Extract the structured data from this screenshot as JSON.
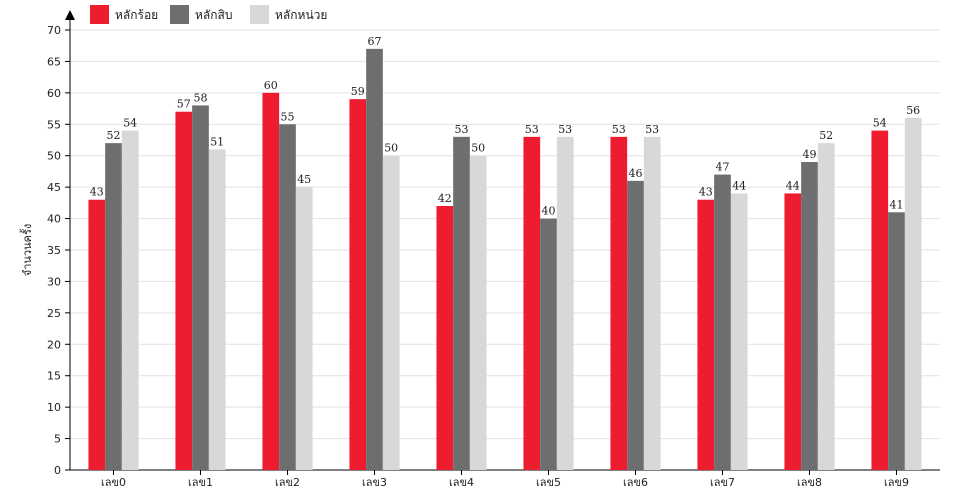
{
  "chart_data": {
    "type": "bar",
    "title": "",
    "xlabel": "",
    "ylabel": "จำนวนครั้ง",
    "ylim": [
      0,
      70
    ],
    "yticks": [
      0,
      5,
      10,
      15,
      20,
      25,
      30,
      35,
      40,
      45,
      50,
      55,
      60,
      65,
      70
    ],
    "grid": true,
    "legend_position": "top-left",
    "categories": [
      "เลข0",
      "เลข1",
      "เลข2",
      "เลข3",
      "เลข4",
      "เลข5",
      "เลข6",
      "เลข7",
      "เลข8",
      "เลข9"
    ],
    "series": [
      {
        "name": "หลักร้อย",
        "color": "#ed1c2e",
        "values": [
          43,
          57,
          60,
          59,
          42,
          53,
          53,
          43,
          44,
          54
        ]
      },
      {
        "name": "หลักสิบ",
        "color": "#6d6e70",
        "values": [
          52,
          58,
          55,
          67,
          53,
          40,
          46,
          47,
          49,
          41
        ]
      },
      {
        "name": "หลักหน่วย",
        "color": "#d8d8d8",
        "values": [
          54,
          51,
          45,
          50,
          50,
          53,
          53,
          44,
          52,
          56
        ]
      }
    ]
  }
}
